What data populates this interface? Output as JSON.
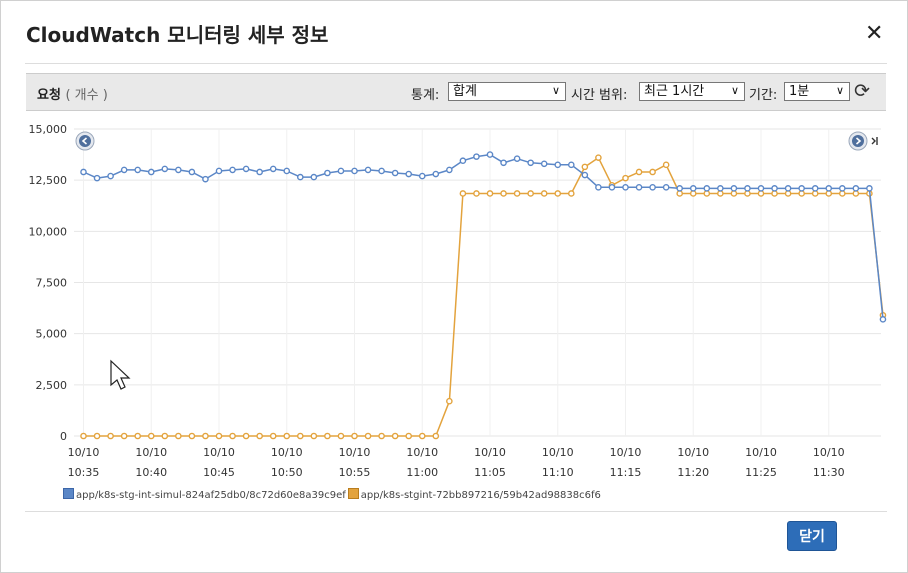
{
  "dialog": {
    "title": "CloudWatch 모니터링 세부 정보",
    "close_symbol": "✕",
    "close_button_label": "닫기"
  },
  "toolbar": {
    "metric_label": "요청",
    "metric_unit": "( 개수 )",
    "statistic_label": "통계:",
    "statistic_value": "합계",
    "time_range_label": "시간 범위:",
    "time_range_value": "최근 1시간",
    "period_label": "기간:",
    "period_value": "1분",
    "refresh_icon": "refresh-icon"
  },
  "colors": {
    "series_blue": "#5b87c7",
    "series_orange": "#e3a33d",
    "accent_button": "#2d6db8"
  },
  "chart_data": {
    "type": "line",
    "ylim": [
      0,
      15000
    ],
    "y_ticks": [
      "15,000",
      "12,500",
      "10,000",
      "7,500",
      "5,000",
      "2,500",
      "0"
    ],
    "y_tick_values": [
      15000,
      12500,
      10000,
      7500,
      5000,
      2500,
      0
    ],
    "x_tick_labels": [
      [
        "10/10",
        "10:35"
      ],
      [
        "10/10",
        "10:40"
      ],
      [
        "10/10",
        "10:45"
      ],
      [
        "10/10",
        "10:50"
      ],
      [
        "10/10",
        "10:55"
      ],
      [
        "10/10",
        "11:00"
      ],
      [
        "10/10",
        "11:05"
      ],
      [
        "10/10",
        "11:10"
      ],
      [
        "10/10",
        "11:15"
      ],
      [
        "10/10",
        "11:20"
      ],
      [
        "10/10",
        "11:25"
      ],
      [
        "10/10",
        "11:30"
      ]
    ],
    "x_tick_minutes": [
      "10:35",
      "10:40",
      "10:45",
      "10:50",
      "10:55",
      "11:00",
      "11:05",
      "11:10",
      "11:15",
      "11:20",
      "11:25",
      "11:30"
    ],
    "grid": true,
    "legend_position": "bottom-left",
    "series": [
      {
        "name": "app/k8s-stg-int-simul-824af25db0/8c72d60e8a39c9ef",
        "color": "#5b87c7",
        "x_start": "10:35",
        "values": [
          12900,
          12600,
          12700,
          13000,
          13000,
          12900,
          13050,
          13000,
          12900,
          12550,
          12950,
          13000,
          13050,
          12900,
          13050,
          12950,
          12650,
          12650,
          12850,
          12950,
          12950,
          13000,
          12950,
          12850,
          12800,
          12700,
          12800,
          13000,
          13450,
          13650,
          13750,
          13350,
          13550,
          13350,
          13300,
          13250,
          13250,
          12750,
          12150,
          12150,
          12150,
          12150,
          12150,
          12150,
          12100,
          12100,
          12100,
          12100,
          12100,
          12100,
          12100,
          12100,
          12100,
          12100,
          12100,
          12100,
          12100,
          12100,
          12100,
          5700
        ]
      },
      {
        "name": "app/k8s-stgint-72bb897216/59b42ad98838c6f6",
        "color": "#e3a33d",
        "x_start": "10:35",
        "values": [
          0,
          0,
          0,
          0,
          0,
          0,
          0,
          0,
          0,
          0,
          0,
          0,
          0,
          0,
          0,
          0,
          0,
          0,
          0,
          0,
          0,
          0,
          0,
          0,
          0,
          0,
          0,
          1700,
          11850,
          11850,
          11850,
          11850,
          11850,
          11850,
          11850,
          11850,
          11850,
          13150,
          13600,
          12250,
          12600,
          12900,
          12900,
          13250,
          11850,
          11850,
          11850,
          11850,
          11850,
          11850,
          11850,
          11850,
          11850,
          11850,
          11850,
          11850,
          11850,
          11850,
          11850,
          5900
        ]
      }
    ]
  }
}
